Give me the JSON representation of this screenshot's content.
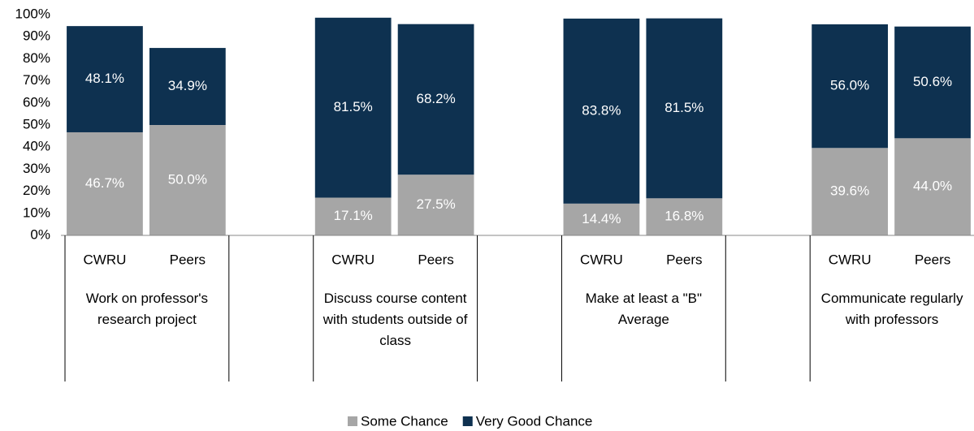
{
  "chart_data": {
    "type": "stacked_bar",
    "categories": [
      "CWRU",
      "Peers",
      null,
      "CWRU",
      "Peers",
      null,
      "CWRU",
      "Peers",
      null,
      "CWRU",
      "Peers"
    ],
    "groups": [
      "Work on professor's research project",
      "Discuss course content with students outside of class",
      "Make at least a \"B\" Average",
      "Communicate regularly with professors"
    ],
    "series": [
      {
        "name": "Some Chance",
        "color": "#a6a6a6",
        "values": [
          46.7,
          50.0,
          null,
          17.1,
          27.5,
          null,
          14.4,
          16.8,
          null,
          39.6,
          44.0
        ],
        "value_labels": [
          "46.7%",
          "50.0%",
          null,
          "17.1%",
          "27.5%",
          null,
          "14.4%",
          "16.8%",
          null,
          "39.6%",
          "44.0%"
        ]
      },
      {
        "name": "Very Good Chance",
        "color": "#0e3150",
        "values": [
          48.1,
          34.9,
          null,
          81.5,
          68.2,
          null,
          83.8,
          81.5,
          null,
          56.0,
          50.6
        ],
        "value_labels": [
          "48.1%",
          "34.9%",
          null,
          "81.5%",
          "68.2%",
          null,
          "83.8%",
          "81.5%",
          null,
          "56.0%",
          "50.6%"
        ]
      }
    ],
    "ylim": [
      0,
      100
    ],
    "yticks": [
      {
        "value": 0,
        "label": "0%"
      },
      {
        "value": 10,
        "label": "10%"
      },
      {
        "value": 20,
        "label": "20%"
      },
      {
        "value": 30,
        "label": "30%"
      },
      {
        "value": 40,
        "label": "40%"
      },
      {
        "value": 50,
        "label": "50%"
      },
      {
        "value": 60,
        "label": "60%"
      },
      {
        "value": 70,
        "label": "70%"
      },
      {
        "value": 80,
        "label": "80%"
      },
      {
        "value": 90,
        "label": "90%"
      },
      {
        "value": 100,
        "label": "100%"
      }
    ],
    "legend": "bottom"
  }
}
